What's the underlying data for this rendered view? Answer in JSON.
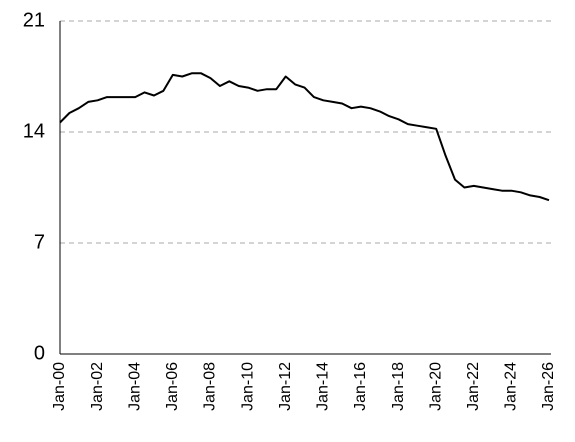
{
  "chart_data": {
    "type": "line",
    "categories": [
      "Jan-00",
      null,
      null,
      null,
      "Jan-02",
      null,
      null,
      null,
      "Jan-04",
      null,
      null,
      null,
      "Jan-06",
      null,
      null,
      null,
      "Jan-08",
      null,
      null,
      null,
      "Jan-10",
      null,
      null,
      null,
      "Jan-12",
      null,
      null,
      null,
      "Jan-14",
      null,
      null,
      null,
      "Jan-16",
      null,
      null,
      null,
      "Jan-18",
      null,
      null,
      null,
      "Jan-20",
      null,
      null,
      null,
      "Jan-22",
      null,
      null,
      null,
      "Jan-24",
      null,
      null,
      null,
      "Jan-26"
    ],
    "values": [
      14.6,
      15.2,
      15.5,
      15.9,
      16.0,
      16.2,
      16.2,
      16.2,
      16.2,
      16.5,
      16.3,
      16.6,
      17.6,
      17.5,
      17.7,
      17.7,
      17.4,
      16.9,
      17.2,
      16.9,
      16.8,
      16.6,
      16.7,
      16.7,
      17.5,
      17.0,
      16.8,
      16.2,
      16.0,
      15.9,
      15.8,
      15.5,
      15.6,
      15.5,
      15.3,
      15.0,
      14.8,
      14.5,
      14.4,
      14.3,
      14.2,
      12.5,
      11.0,
      10.5,
      10.6,
      10.5,
      10.4,
      10.3,
      10.3,
      10.2,
      10.0,
      9.9,
      9.7
    ],
    "color": "#000000",
    "ylim": [
      0,
      21
    ],
    "yticks": [
      0,
      7,
      14,
      21
    ],
    "grid": true
  }
}
